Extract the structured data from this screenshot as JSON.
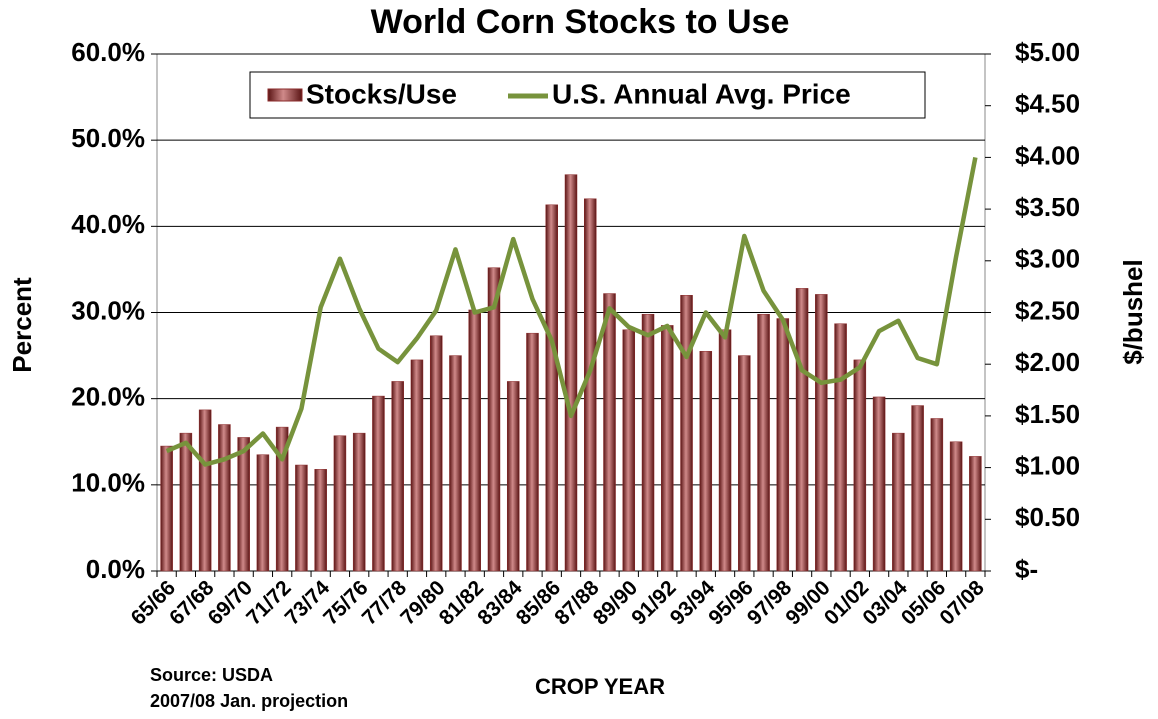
{
  "chart_data": {
    "type": "bar",
    "title": "World Corn Stocks to Use",
    "y_label": "Percent",
    "y2_label": "$/bushel",
    "x_label": "CROP YEAR",
    "annotations": [
      "Source: USDA",
      "2007/08 Jan. projection"
    ],
    "categories": [
      "65/66",
      null,
      "67/68",
      null,
      "69/70",
      null,
      "71/72",
      null,
      "73/74",
      null,
      "75/76",
      null,
      "77/78",
      null,
      "79/80",
      null,
      "81/82",
      null,
      "83/84",
      null,
      "85/86",
      null,
      "87/88",
      null,
      "89/90",
      null,
      "91/92",
      null,
      "93/94",
      null,
      "95/96",
      null,
      "97/98",
      null,
      "99/00",
      null,
      "01/02",
      null,
      "03/04",
      null,
      "05/06",
      null,
      "07/08"
    ],
    "series": [
      {
        "name": "Stocks/Use",
        "type": "bar",
        "color": "#8b2a2a",
        "values": [
          14.5,
          16,
          18.7,
          17,
          15.5,
          13.5,
          16.7,
          12.3,
          11.8,
          15.7,
          16,
          20.3,
          22,
          24.5,
          27.3,
          25,
          30.3,
          35.2,
          22,
          27.6,
          42.5,
          46,
          43.2,
          32.2,
          28,
          29.8,
          28.5,
          32,
          25.5,
          28,
          25,
          29.8,
          29.3,
          32.8,
          32.1,
          28.7,
          24.5,
          20.2,
          16,
          19.2,
          17.7,
          15,
          13.3
        ]
      },
      {
        "name": "U.S. Annual Avg. Price",
        "type": "line",
        "axis": "y2",
        "color": "#77933c",
        "values": [
          1.16,
          1.24,
          1.03,
          1.08,
          1.16,
          1.33,
          1.08,
          1.57,
          2.55,
          3.02,
          2.54,
          2.15,
          2.02,
          2.25,
          2.52,
          3.11,
          2.5,
          2.55,
          3.21,
          2.63,
          2.23,
          1.5,
          1.94,
          2.54,
          2.36,
          2.28,
          2.37,
          2.07,
          2.5,
          2.26,
          3.24,
          2.71,
          2.43,
          1.94,
          1.82,
          1.85,
          1.97,
          2.32,
          2.42,
          2.06,
          2.0,
          3.04,
          4.0
        ]
      }
    ],
    "ylim": [
      0,
      60
    ],
    "yticks": [
      {
        "value": 0,
        "label": "0.0%"
      },
      {
        "value": 10,
        "label": "10.0%"
      },
      {
        "value": 20,
        "label": "20.0%"
      },
      {
        "value": 30,
        "label": "30.0%"
      },
      {
        "value": 40,
        "label": "40.0%"
      },
      {
        "value": 50,
        "label": "50.0%"
      },
      {
        "value": 60,
        "label": "60.0%"
      }
    ],
    "y2lim": [
      0,
      5
    ],
    "y2ticks": [
      {
        "value": 0,
        "label": "$-"
      },
      {
        "value": 0.5,
        "label": "$0.50"
      },
      {
        "value": 1,
        "label": "$1.00"
      },
      {
        "value": 1.5,
        "label": "$1.50"
      },
      {
        "value": 2,
        "label": "$2.00"
      },
      {
        "value": 2.5,
        "label": "$2.50"
      },
      {
        "value": 3,
        "label": "$3.00"
      },
      {
        "value": 3.5,
        "label": "$3.50"
      },
      {
        "value": 4,
        "label": "$4.00"
      },
      {
        "value": 4.5,
        "label": "$4.50"
      },
      {
        "value": 5,
        "label": "$5.00"
      }
    ],
    "grid": true,
    "legend": "top"
  }
}
